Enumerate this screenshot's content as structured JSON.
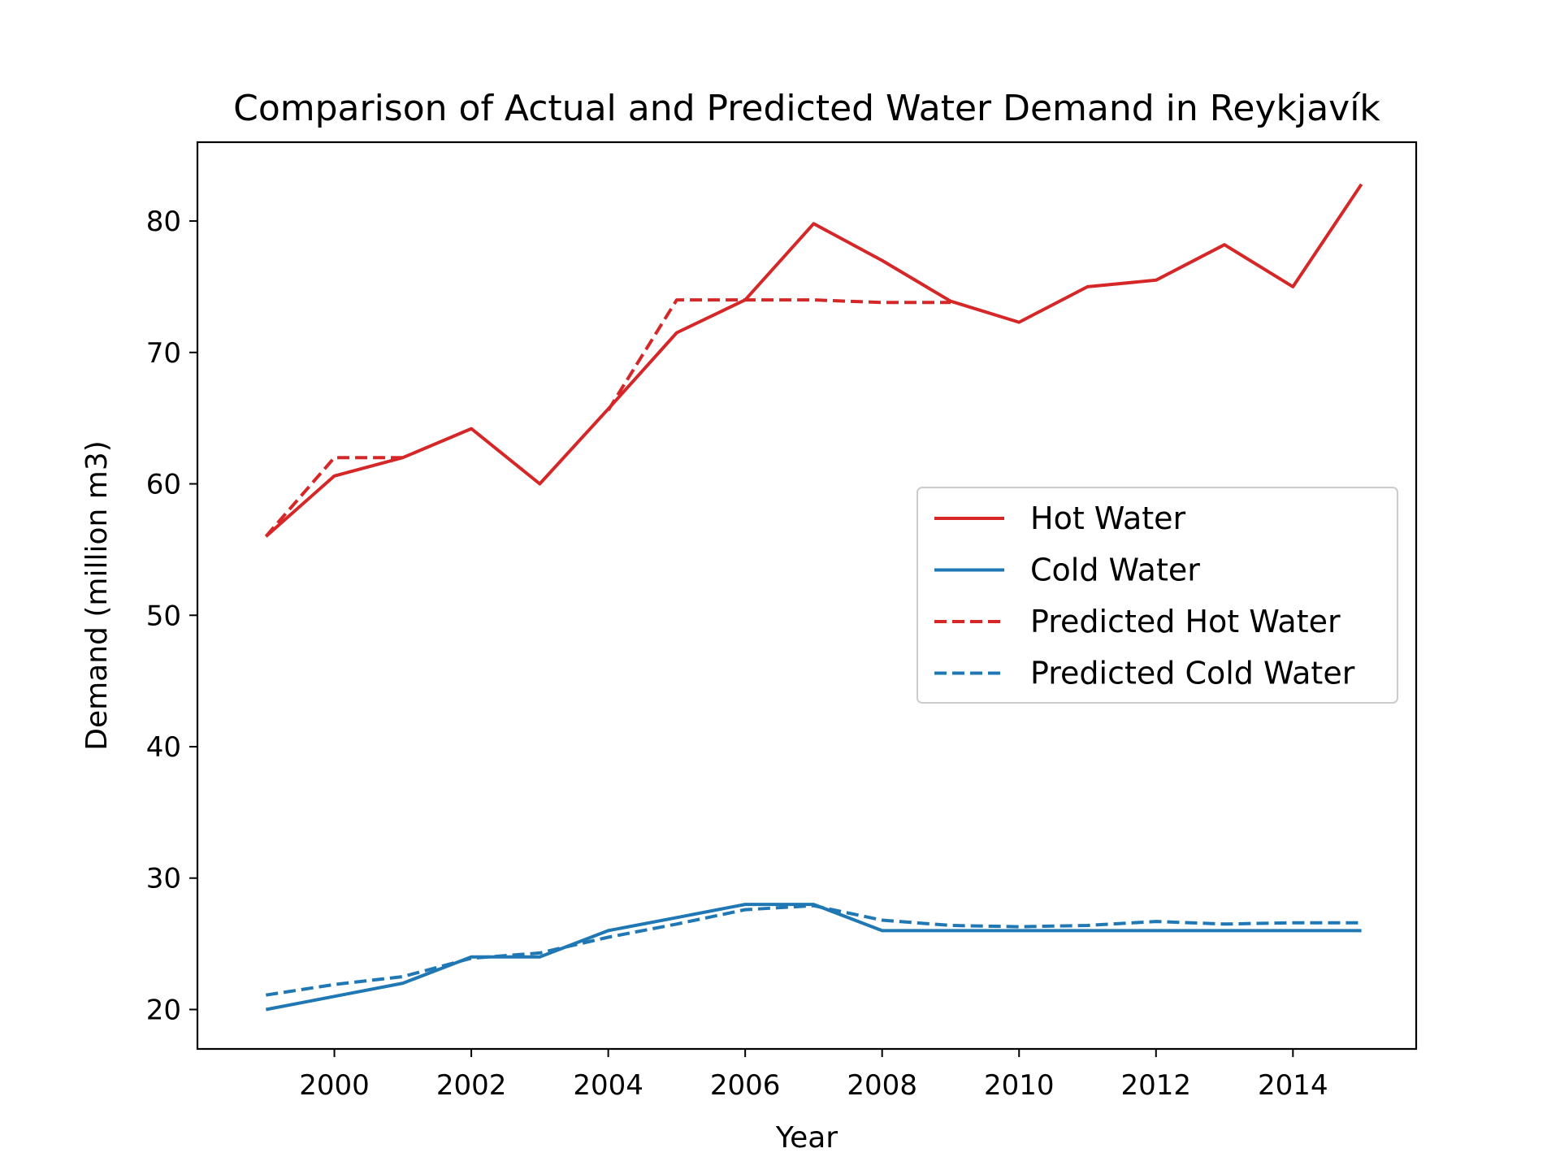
{
  "chart_data": {
    "type": "line",
    "title": "Comparison of Actual and Predicted Water Demand in Reykjavík",
    "xlabel": "Year",
    "ylabel": "Demand (million m3)",
    "xlim": [
      1998.0,
      2015.8
    ],
    "ylim": [
      17,
      86
    ],
    "xticks": [
      2000,
      2002,
      2004,
      2006,
      2008,
      2010,
      2012,
      2014
    ],
    "yticks": [
      20,
      30,
      40,
      50,
      60,
      70,
      80
    ],
    "grid": false,
    "legend_position": "center-right",
    "series": [
      {
        "name": "Hot Water",
        "color": "#d62728",
        "style": "solid",
        "x": [
          1999,
          2000,
          2001,
          2002,
          2003,
          2004,
          2005,
          2006,
          2007,
          2008,
          2009,
          2010,
          2011,
          2012,
          2013,
          2014,
          2015
        ],
        "y": [
          56.0,
          60.6,
          62.0,
          64.2,
          60.0,
          65.7,
          71.5,
          74.0,
          79.8,
          77.0,
          73.9,
          72.3,
          75.0,
          75.5,
          78.2,
          75.0,
          82.8
        ]
      },
      {
        "name": "Cold Water",
        "color": "#1f77b4",
        "style": "solid",
        "x": [
          1999,
          2000,
          2001,
          2002,
          2003,
          2004,
          2005,
          2006,
          2007,
          2008,
          2009,
          2010,
          2011,
          2012,
          2013,
          2014,
          2015
        ],
        "y": [
          20.0,
          21.0,
          22.0,
          24.0,
          24.0,
          26.0,
          27.0,
          28.0,
          28.0,
          26.0,
          26.0,
          26.0,
          26.0,
          26.0,
          26.0,
          26.0,
          26.0
        ]
      },
      {
        "name": "Predicted Hot Water",
        "color": "#d62728",
        "style": "dashed",
        "x": [
          1999,
          2000,
          2001,
          2002,
          2003,
          2004,
          2005,
          2006,
          2007,
          2008,
          2009
        ],
        "y": [
          56.0,
          62.0,
          62.0,
          null,
          null,
          65.6,
          74.0,
          74.0,
          74.0,
          73.8,
          73.8
        ]
      },
      {
        "name": "Predicted Cold Water",
        "color": "#1f77b4",
        "style": "dashed",
        "x": [
          1999,
          2000,
          2001,
          2002,
          2003,
          2004,
          2005,
          2006,
          2007,
          2008,
          2009,
          2010,
          2011,
          2012,
          2013,
          2014,
          2015
        ],
        "y": [
          21.1,
          21.9,
          22.5,
          23.9,
          24.3,
          25.5,
          26.5,
          27.6,
          27.9,
          26.8,
          26.4,
          26.3,
          26.4,
          26.7,
          26.5,
          26.6,
          26.6
        ]
      }
    ]
  }
}
